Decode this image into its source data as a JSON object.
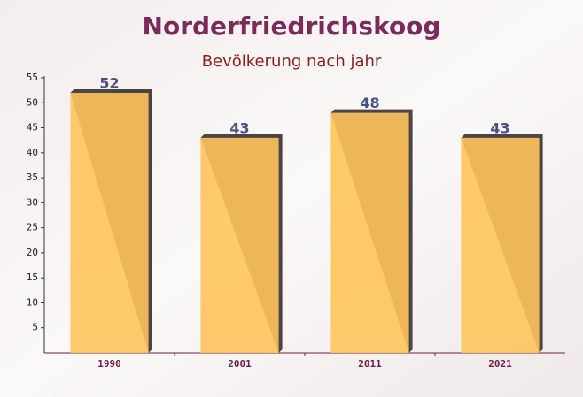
{
  "chart_data": {
    "type": "bar",
    "title": "Norderfriedrichskoog",
    "subtitle": "Bevölkerung nach jahr",
    "categories": [
      "1990",
      "2001",
      "2011",
      "2021"
    ],
    "values": [
      52,
      43,
      48,
      43
    ],
    "color": "#ffc45c",
    "ylim": [
      0,
      55
    ],
    "yticks": [
      5,
      10,
      15,
      20,
      25,
      30,
      35,
      40,
      45,
      50,
      55
    ],
    "grid": false
  }
}
